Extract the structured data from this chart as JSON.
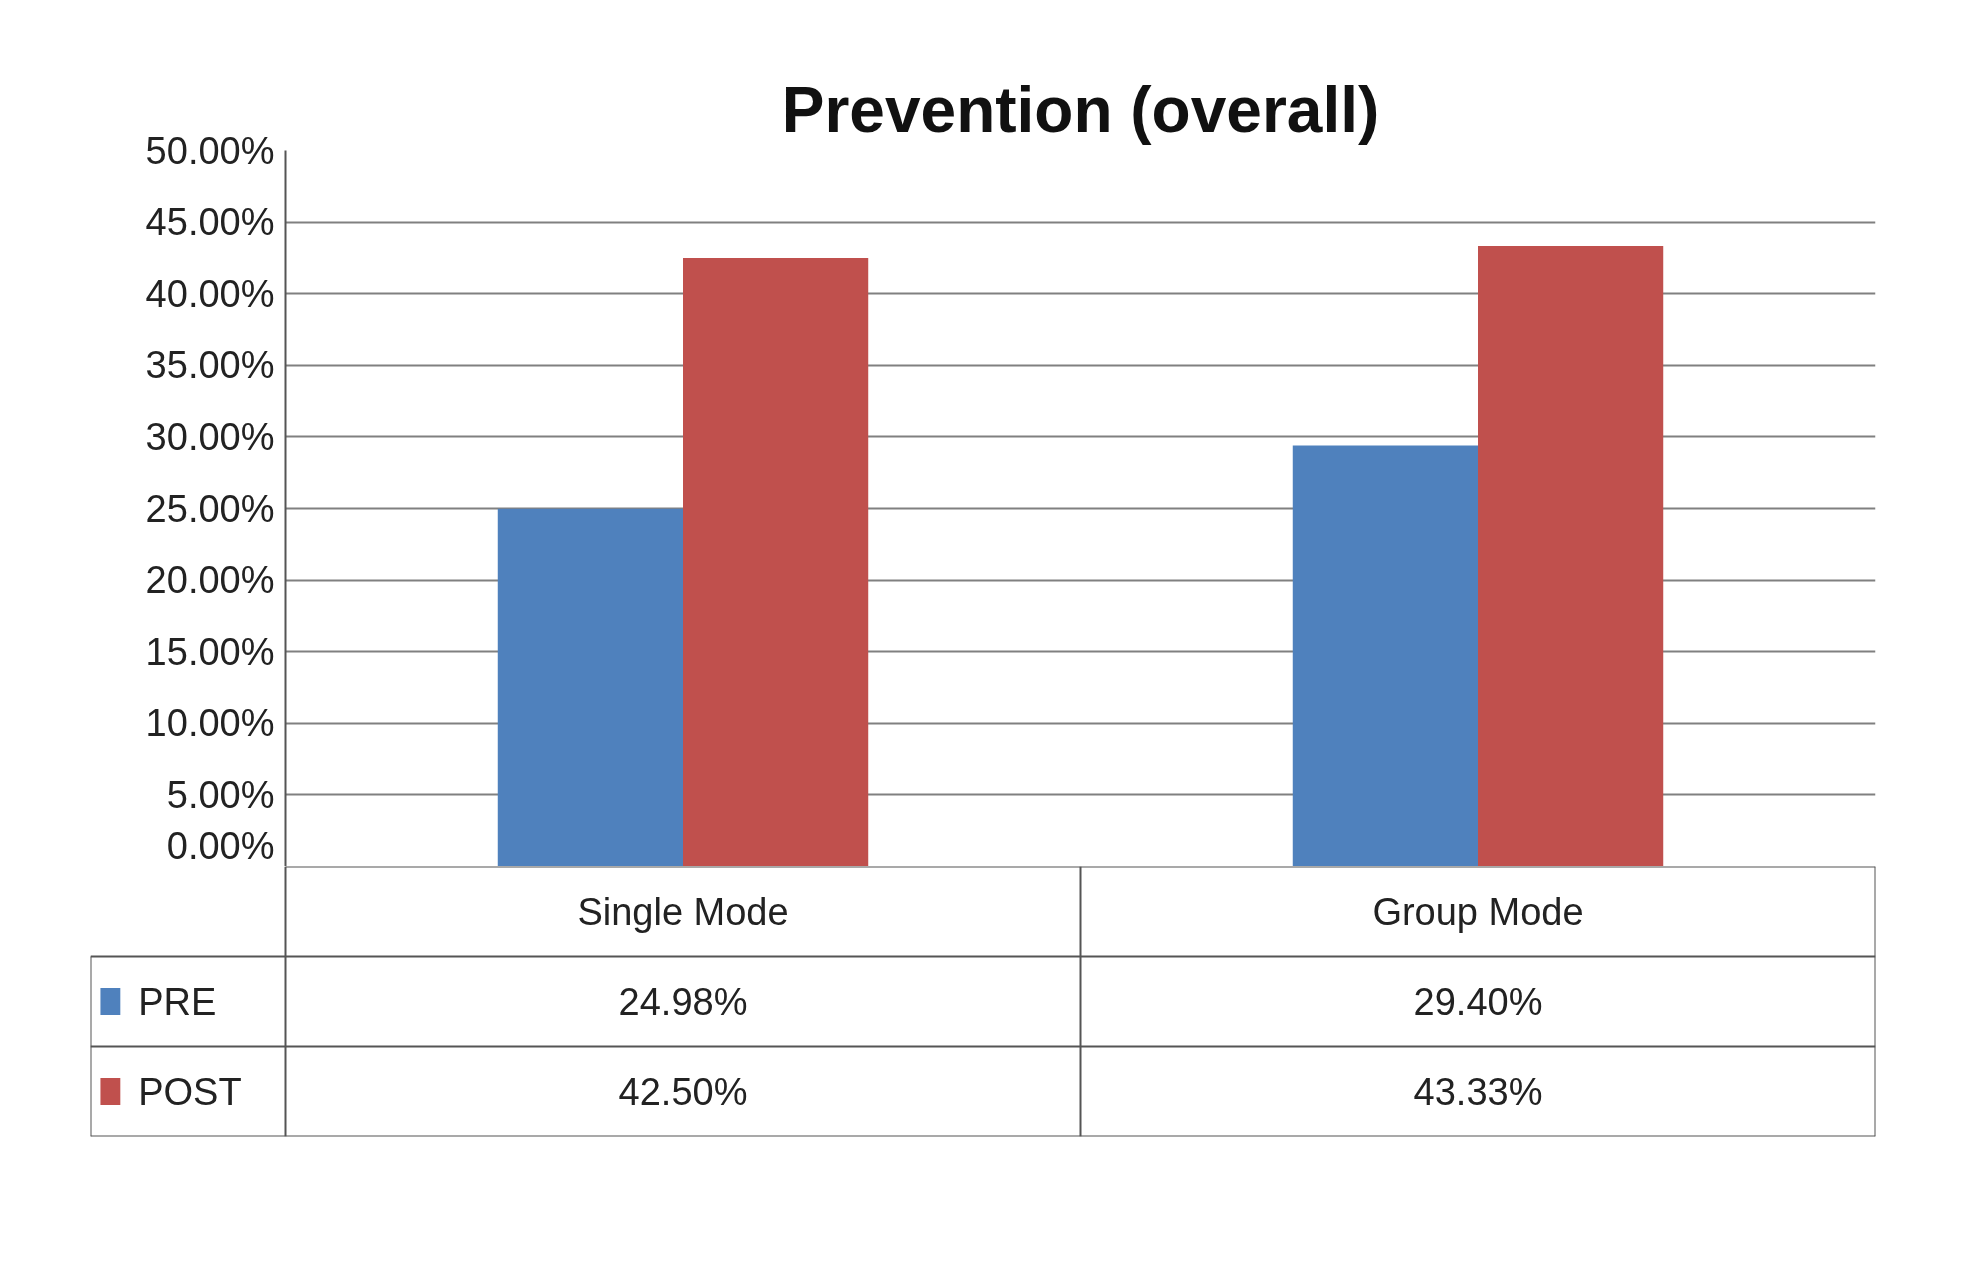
{
  "chart_data": {
    "type": "bar",
    "title": "Prevention (overall)",
    "categories": [
      "Single Mode",
      "Group Mode"
    ],
    "series": [
      {
        "name": "PRE",
        "color": "#4f81bd",
        "values": [
          24.98,
          29.4
        ]
      },
      {
        "name": "POST",
        "color": "#c0504d",
        "values": [
          42.5,
          43.33
        ]
      }
    ],
    "value_labels": [
      [
        "24.98%",
        "29.40%"
      ],
      [
        "42.50%",
        "43.33%"
      ]
    ],
    "ylim": [
      0,
      50
    ],
    "yticks": [
      {
        "value": 0,
        "label": "0.00%"
      },
      {
        "value": 5,
        "label": "5.00%"
      },
      {
        "value": 10,
        "label": "10.00%"
      },
      {
        "value": 15,
        "label": "15.00%"
      },
      {
        "value": 20,
        "label": "20.00%"
      },
      {
        "value": 25,
        "label": "25.00%"
      },
      {
        "value": 30,
        "label": "30.00%"
      },
      {
        "value": 35,
        "label": "35.00%"
      },
      {
        "value": 40,
        "label": "40.00%"
      },
      {
        "value": 45,
        "label": "45.00%"
      },
      {
        "value": 50,
        "label": "50.00%"
      }
    ],
    "grid": "y",
    "legend": "bottom"
  }
}
